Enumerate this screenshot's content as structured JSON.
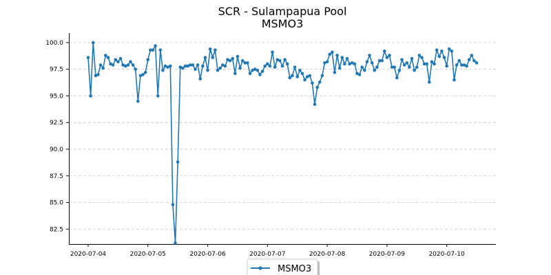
{
  "chart_data": {
    "type": "line",
    "title": "SCR - Sulampapua Pool",
    "subtitle": "MSMO3",
    "xlabel": "",
    "ylabel": "",
    "ylim": [
      81.1,
      100.9
    ],
    "x_tick_labels": [
      "2020-07-04",
      "2020-07-05",
      "2020-07-06",
      "2020-07-07",
      "2020-07-08",
      "2020-07-09",
      "2020-07-10"
    ],
    "y_tick_labels": [
      "82.5",
      "85.0",
      "87.5",
      "90.0",
      "92.5",
      "95.0",
      "97.5",
      "100.0"
    ],
    "y_tick_values": [
      82.5,
      85.0,
      87.5,
      90.0,
      92.5,
      95.0,
      97.5,
      100.0
    ],
    "grid": "y-dashed",
    "legend_position": "bottom-center",
    "series": [
      {
        "name": "MSMO3",
        "color": "#1f77b4",
        "marker": "circle",
        "values": [
          98.6,
          95.0,
          100.0,
          96.9,
          97.0,
          97.9,
          97.6,
          98.8,
          98.6,
          98.0,
          97.9,
          98.4,
          98.2,
          98.5,
          97.9,
          97.8,
          97.9,
          98.2,
          97.9,
          97.5,
          94.5,
          96.9,
          97.0,
          97.2,
          98.4,
          99.3,
          99.3,
          99.7,
          95.0,
          99.3,
          97.4,
          97.8,
          97.7,
          97.8,
          84.8,
          81.2,
          88.8,
          97.7,
          97.6,
          97.8,
          97.8,
          97.9,
          97.9,
          97.5,
          97.9,
          96.6,
          97.8,
          98.6,
          97.4,
          99.4,
          98.6,
          99.3,
          97.4,
          97.6,
          97.9,
          97.8,
          98.4,
          98.3,
          98.5,
          97.1,
          98.7,
          97.6,
          98.3,
          98.1,
          98.1,
          97.1,
          97.4,
          97.5,
          97.4,
          97.0,
          97.3,
          97.8,
          98.0,
          97.8,
          99.1,
          97.7,
          98.4,
          98.3,
          97.8,
          98.4,
          98.0,
          96.7,
          96.9,
          97.7,
          96.8,
          97.4,
          97.1,
          96.5,
          96.8,
          96.9,
          96.2,
          94.2,
          95.8,
          96.3,
          96.9,
          98.1,
          98.2,
          98.9,
          99.1,
          97.2,
          98.8,
          97.6,
          98.6,
          98.0,
          98.5,
          98.0,
          98.1,
          98.0,
          97.1,
          97.0,
          97.7,
          97.4,
          98.2,
          98.8,
          98.1,
          97.4,
          97.7,
          98.3,
          98.3,
          99.2,
          98.6,
          98.8,
          97.7,
          97.7,
          96.7,
          97.4,
          98.4,
          97.9,
          98.1,
          97.7,
          98.5,
          97.4,
          97.7,
          98.8,
          98.6,
          98.0,
          98.0,
          96.3,
          98.2,
          98.0,
          99.3,
          98.7,
          99.2,
          98.6,
          97.8,
          99.4,
          99.2,
          96.5,
          97.9,
          98.3,
          97.9,
          97.9,
          97.8,
          98.4,
          98.8,
          98.3,
          98.1
        ]
      }
    ]
  }
}
